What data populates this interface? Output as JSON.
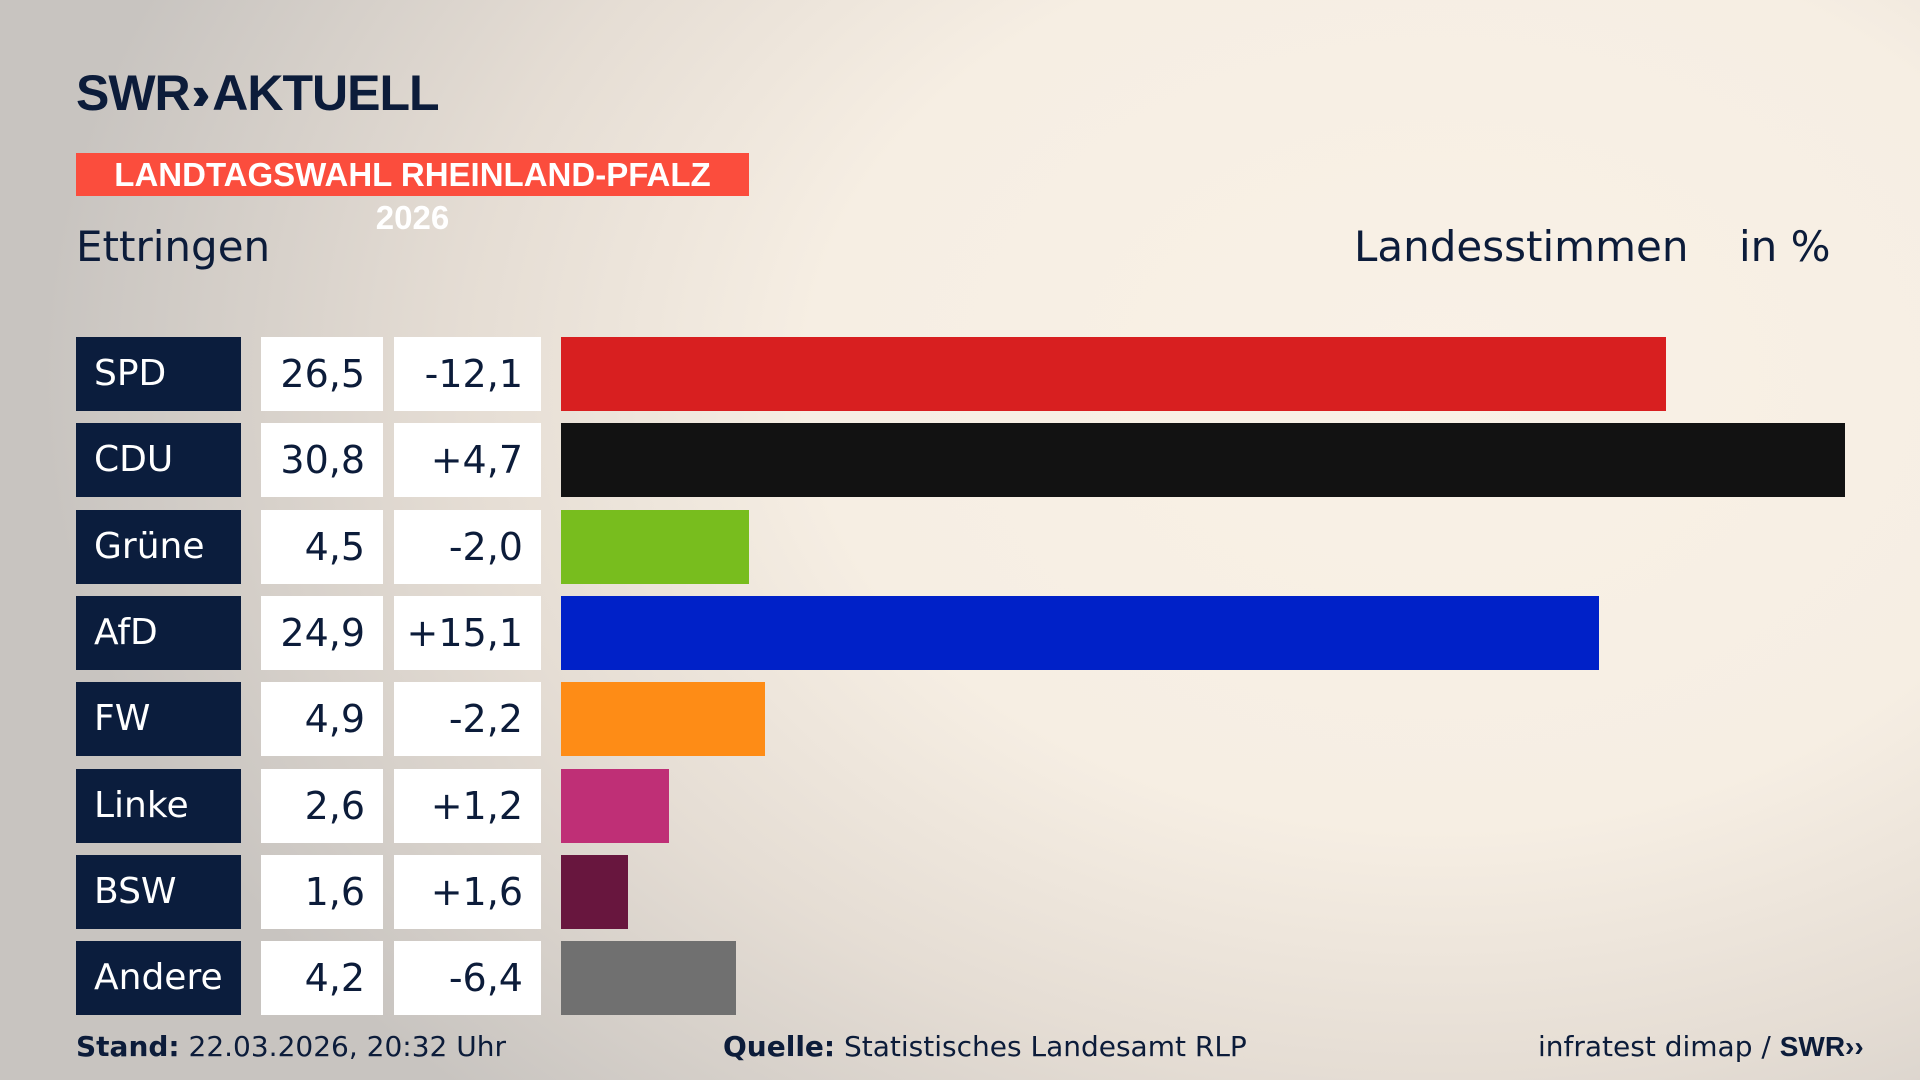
{
  "header": {
    "logo_text": "SWR AKTUELL",
    "banner": "LANDTAGSWAHL RHEINLAND-PFALZ 2026",
    "place": "Ettringen",
    "measure": "Landesstimmen",
    "unit": "in %"
  },
  "chart_data": {
    "type": "bar",
    "orientation": "horizontal",
    "categories": [
      "SPD",
      "CDU",
      "Grüne",
      "AfD",
      "FW",
      "Linke",
      "BSW",
      "Andere"
    ],
    "values": [
      26.5,
      30.8,
      4.5,
      24.9,
      4.9,
      2.6,
      1.6,
      4.2
    ],
    "value_labels": [
      "26,5",
      "30,8",
      "4,5",
      "24,9",
      "4,9",
      "2,6",
      "1,6",
      "4,2"
    ],
    "diff_labels": [
      "-12,1",
      "+4,7",
      "-2,0",
      "+15,1",
      "-2,2",
      "+1,2",
      "+1,6",
      "-6,4"
    ],
    "colors": [
      "#d81f20",
      "#121212",
      "#78bd1e",
      "#0021c8",
      "#fe8c16",
      "#bf2f76",
      "#68163e",
      "#707070"
    ],
    "xlim": [
      0,
      30.8
    ],
    "grid": false
  },
  "footer": {
    "stand_label": "Stand:",
    "stand_value": " 22.03.2026, 20:32 Uhr",
    "source_label": "Quelle:",
    "source_value": " Statistisches Landesamt RLP",
    "credit": "infratest dimap / ",
    "credit_logo": "SWR"
  }
}
